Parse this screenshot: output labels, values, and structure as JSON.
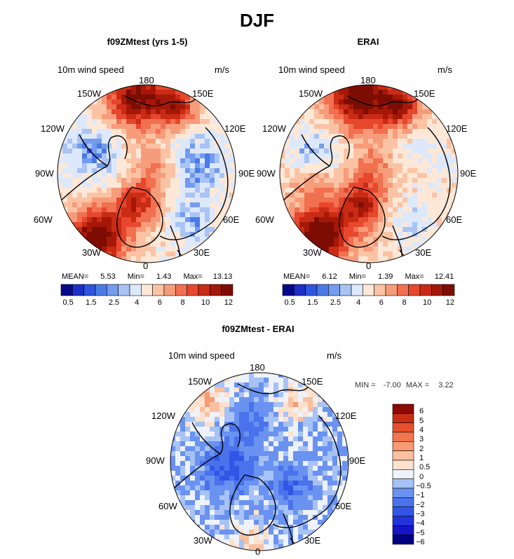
{
  "title": "DJF",
  "colors": {
    "abs_scale": [
      "#08088a",
      "#1c2fc7",
      "#2f55e0",
      "#4a7ae8",
      "#739bee",
      "#a9c4f4",
      "#dde8fb",
      "#fde8d8",
      "#fbc3a4",
      "#f79c7a",
      "#f07050",
      "#e6472d",
      "#c92b15",
      "#a51808",
      "#7d0d03"
    ],
    "diff_scale": [
      "#000080",
      "#1515c8",
      "#2233dd",
      "#3355e6",
      "#4a72ec",
      "#6a92f0",
      "#a7c2f5",
      "#eef2fa",
      "#fde1cc",
      "#fac0a0",
      "#f89a72",
      "#f2764d",
      "#e6502d",
      "#c92e14",
      "#8b0a03"
    ],
    "land_outline": "#000000",
    "circle_outline": "#000000"
  },
  "panels": [
    {
      "id": "model",
      "title": "f09ZMtest (yrs 1-5)",
      "variable": "10m wind speed",
      "units": "m/s",
      "lon_labels": {
        "n": "180",
        "ne": "150E",
        "ene": "120E",
        "e": "90E",
        "ese": "60E",
        "se": "30E",
        "s": "0",
        "sw": "30W",
        "wsw": "60W",
        "w": "90W",
        "wnw": "120W",
        "nw": "150W"
      },
      "stats": {
        "mean_label": "MEAN=",
        "mean": "5.53",
        "min_label": "Min=",
        "min": "1.43",
        "max_label": "Max=",
        "max": "13.13"
      }
    },
    {
      "id": "obs",
      "title": "ERAI",
      "variable": "10m wind speed",
      "units": "m/s",
      "lon_labels": {
        "n": "180",
        "ne": "150E",
        "ene": "120E",
        "e": "90E",
        "ese": "60E",
        "se": "30E",
        "s": "0",
        "sw": "30W",
        "wsw": "60W",
        "w": "90W",
        "wnw": "120W",
        "nw": "150W"
      },
      "stats": {
        "mean_label": "MEAN=",
        "mean": "6.12",
        "min_label": "Min=",
        "min": "1.39",
        "max_label": "Max=",
        "max": "12.41"
      }
    },
    {
      "id": "diff",
      "title": "f09ZMtest - ERAI",
      "variable": "10m wind speed",
      "units": "m/s",
      "lon_labels": {
        "n": "180",
        "ne": "150E",
        "ene": "120E",
        "e": "90E",
        "ese": "60E",
        "se": "30E",
        "s": "0",
        "sw": "30W",
        "wsw": "60W",
        "w": "90W",
        "wnw": "120W",
        "nw": "150W"
      },
      "stats": {
        "min_label": "MIN =",
        "min": "-7.00",
        "max_label": "MAX =",
        "max": "3.22"
      }
    }
  ],
  "chart_data": [
    {
      "type": "heatmap",
      "title": "f09ZMtest (yrs 1-5)",
      "projection": "north polar stereographic",
      "variable": "10m wind speed",
      "units": "m/s",
      "colorbar_levels": [
        0.5,
        1,
        1.5,
        2,
        2.5,
        3,
        4,
        5,
        6,
        7,
        8,
        9,
        10,
        11,
        12
      ],
      "colorbar_tick_labels": [
        "0.5",
        "1.5",
        "2.5",
        "4",
        "6",
        "8",
        "10",
        "12"
      ],
      "mean": 5.53,
      "min": 1.43,
      "max": 13.13
    },
    {
      "type": "heatmap",
      "title": "ERAI",
      "projection": "north polar stereographic",
      "variable": "10m wind speed",
      "units": "m/s",
      "colorbar_levels": [
        0.5,
        1,
        1.5,
        2,
        2.5,
        3,
        4,
        5,
        6,
        7,
        8,
        9,
        10,
        11,
        12
      ],
      "colorbar_tick_labels": [
        "0.5",
        "1.5",
        "2.5",
        "4",
        "6",
        "8",
        "10",
        "12"
      ],
      "mean": 6.12,
      "min": 1.39,
      "max": 12.41
    },
    {
      "type": "heatmap",
      "title": "f09ZMtest - ERAI",
      "projection": "north polar stereographic",
      "variable": "10m wind speed",
      "units": "m/s",
      "colorbar_levels": [
        -6,
        -5,
        -4,
        -3,
        -2,
        -1,
        -0.5,
        0,
        0.5,
        1,
        2,
        3,
        4,
        5,
        6
      ],
      "colorbar_tick_labels": [
        "6",
        "5",
        "4",
        "3",
        "2",
        "1",
        "0.5",
        "0",
        "−0.5",
        "−1",
        "−2",
        "−3",
        "−4",
        "−5",
        "−6"
      ],
      "min": -7.0,
      "max": 3.22
    }
  ]
}
